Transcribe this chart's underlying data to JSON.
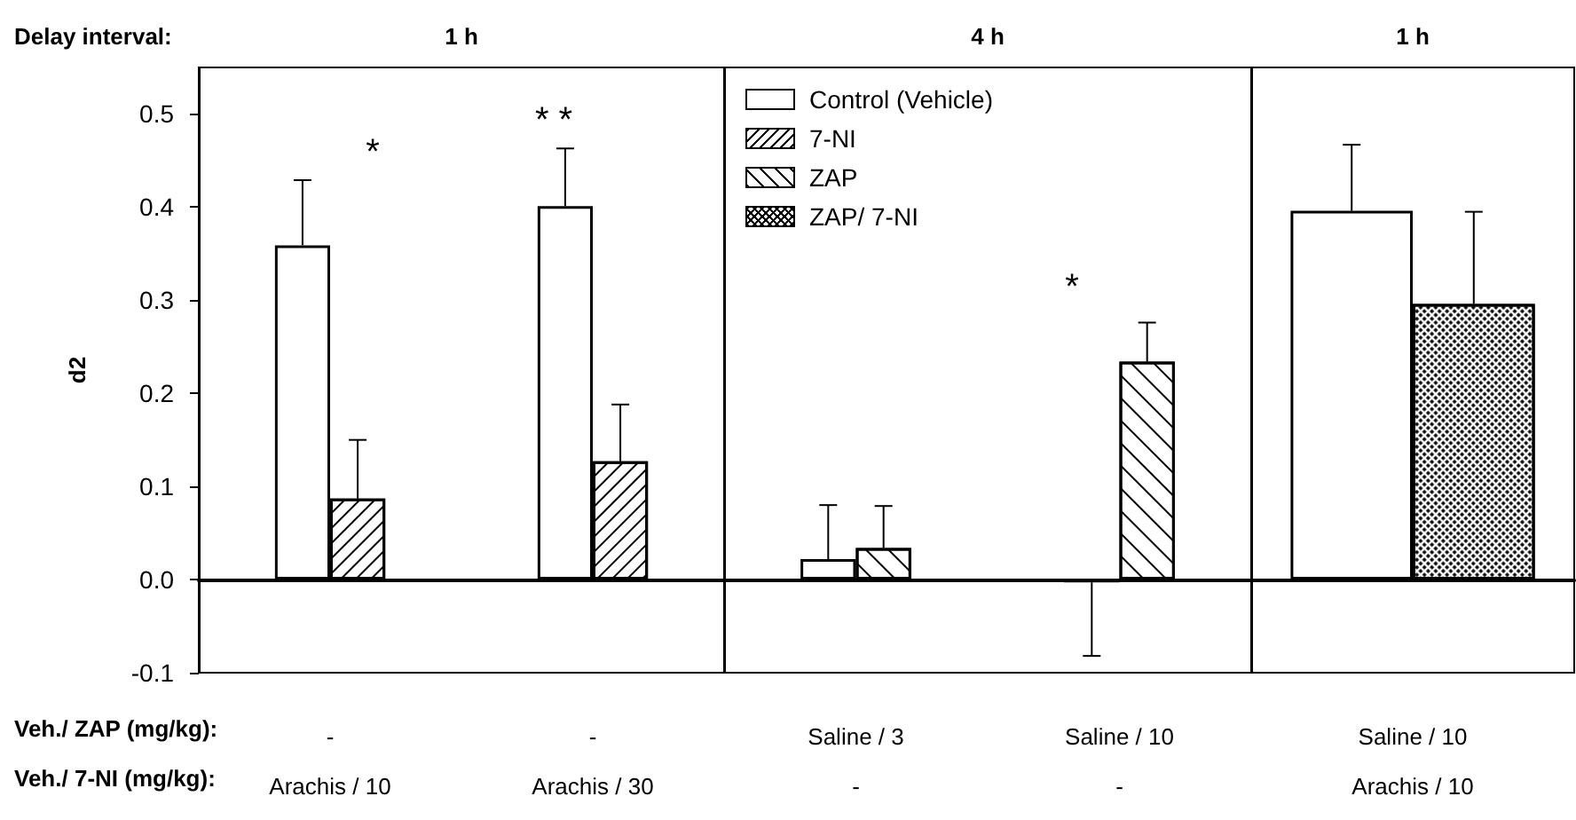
{
  "chart_data": [
    {
      "type": "bar",
      "title": "1 h",
      "ylabel": "d2",
      "categories": [
        "-\nArachis / 10",
        "-\nArachis / 30"
      ],
      "series": [
        {
          "color": "#ffffff",
          "values": [
            0.359,
            0.401
          ],
          "errors": [
            [
              0.359,
              0.429
            ],
            [
              0.401,
              0.463
            ]
          ]
        },
        {
          "color": "#ffffff",
          "values": [
            0.087,
            0.127
          ],
          "errors": [
            [
              0.087,
              0.15
            ],
            [
              0.127,
              0.188
            ]
          ]
        }
      ],
      "ylim": [
        -0.1,
        0.55
      ],
      "yticks": [
        -0.1,
        {
          "value": 0,
          "label": "0.0"
        },
        0.1,
        0.2,
        0.3,
        0.4,
        0.5
      ],
      "annotations": [
        "Delay interval:",
        "Veh./ ZAP (mg/kg):",
        "Veh./ 7-NI (mg/kg):",
        "*",
        "* *"
      ],
      "legend": false
    },
    {
      "type": "bar",
      "title": "4 h",
      "categories": [
        "Saline / 3\n-",
        "Saline / 10\n-"
      ],
      "series": [
        {
          "name": "Control (Vehicle)",
          "color": "#ffffff",
          "values": [
            0.022,
            -0.003
          ],
          "errors": [
            [
              0.022,
              0.08
            ],
            [
              -0.082,
              -0.003
            ]
          ]
        },
        {
          "name": "7-NI",
          "color": "#ffffff",
          "values": [
            null,
            null
          ]
        },
        {
          "name": "ZAP",
          "color": "#ffffff",
          "values": [
            0.034,
            0.234
          ],
          "errors": [
            [
              0.034,
              0.079
            ],
            [
              0.234,
              0.276
            ]
          ]
        },
        {
          "name": "ZAP/ 7-NI",
          "color": "#ffffff",
          "values": [
            null,
            null
          ]
        }
      ],
      "ylim": [
        -0.1,
        0.55
      ],
      "tick_labels": "x",
      "annotations": [
        "*"
      ],
      "legend": "top left"
    },
    {
      "type": "bar",
      "title": "1 h",
      "categories": [
        "Saline / 10\nArachis / 10"
      ],
      "series": [
        {
          "color": "#ffffff",
          "values": [
            0.396
          ],
          "errors": [
            [
              0.396,
              0.467
            ]
          ]
        },
        {
          "color": "#ffffff",
          "values": [
            0.296
          ],
          "errors": [
            [
              0.296,
              0.395
            ]
          ]
        }
      ],
      "ylim": [
        -0.1,
        0.55
      ],
      "tick_labels": "x",
      "legend": false
    }
  ]
}
